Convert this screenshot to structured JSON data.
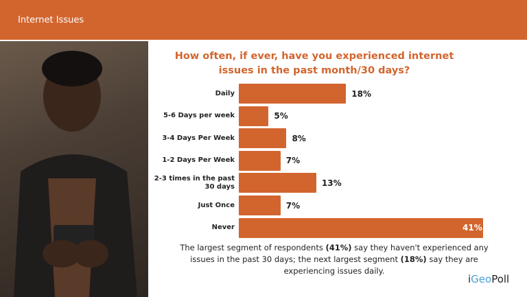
{
  "header": {
    "title": "Internet Issues"
  },
  "summary": {
    "part1": "The largest segment of respondents ",
    "bold1": "(41%)",
    "part2": " say they haven't experienced any issues in the past 30 days; the next largest segment ",
    "bold2": "(18%)",
    "part3": " say they are experiencing issues daily."
  },
  "logo": {
    "geo": "Geo",
    "poll": "Poll",
    "prefix": "i"
  },
  "chart_data": {
    "type": "bar",
    "orientation": "horizontal",
    "title": "How often, if ever, have you experienced internet issues in the past month/30 days?",
    "categories": [
      "Daily",
      "5-6 Days per week",
      "3-4 Days  Per Week",
      "1-2 Days  Per Week",
      "2-3 times  in the past 30 days",
      "Just Once",
      "Never"
    ],
    "values": [
      18,
      5,
      8,
      7,
      13,
      7,
      41
    ],
    "labels": [
      "18%",
      "5%",
      "8%",
      "7%",
      "13%",
      "7%",
      "41%"
    ],
    "color": "#D2652E",
    "xlim": [
      0,
      41
    ],
    "grid": false
  }
}
